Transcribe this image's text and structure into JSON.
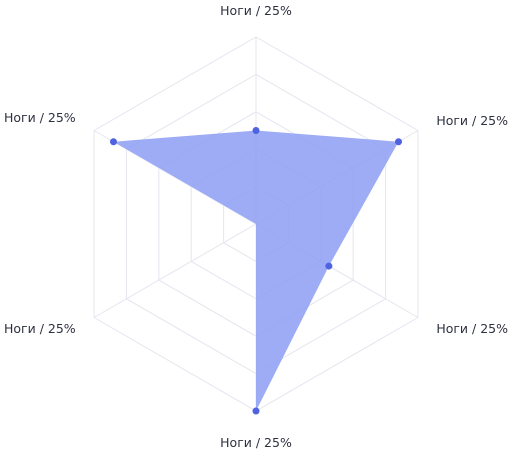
{
  "chart_data": {
    "type": "radar",
    "axes": [
      "Ноги / 25%",
      "Ноги / 25%",
      "Ноги / 25%",
      "Ноги / 25%",
      "Ноги / 25%",
      "Ноги / 25%"
    ],
    "series": [
      {
        "values": [
          2.5,
          4.4,
          2.25,
          5,
          0,
          4.4
        ]
      }
    ],
    "max": 5,
    "grid_levels": 5,
    "grid": true,
    "colors": {
      "fill": "#8c9ef3",
      "point": "#4f63e1",
      "grid": "#e4e6ef",
      "label": "#2e3140"
    }
  }
}
